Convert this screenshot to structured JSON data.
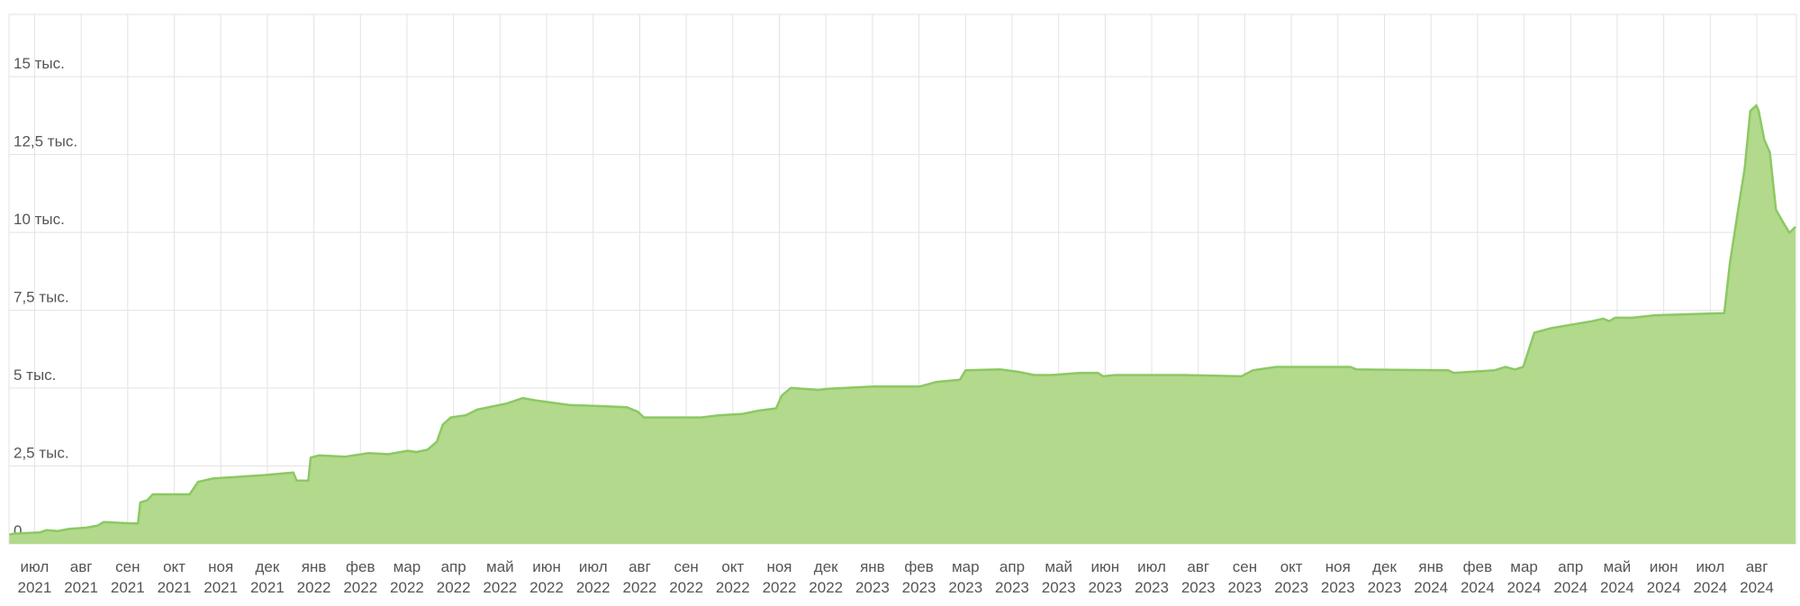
{
  "chart_data": {
    "type": "area",
    "x": [
      -0.54,
      -0.44,
      0.12,
      0.25,
      0.49,
      0.74,
      1.11,
      1.36,
      1.48,
      2.1,
      2.22,
      2.27,
      2.42,
      2.54,
      3.33,
      3.51,
      3.83,
      4.94,
      5.56,
      5.63,
      5.88,
      5.93,
      6.1,
      6.67,
      7.16,
      7.6,
      8.02,
      8.2,
      8.44,
      8.64,
      8.77,
      8.94,
      9.26,
      9.51,
      10.12,
      10.49,
      10.74,
      11.48,
      12.22,
      12.72,
      12.96,
      13.09,
      13.58,
      14.32,
      14.69,
      15.19,
      15.56,
      15.93,
      16.05,
      16.25,
      16.84,
      17.04,
      18.02,
      19.01,
      19.38,
      19.88,
      20.0,
      20.74,
      21.11,
      21.48,
      21.85,
      22.47,
      22.84,
      22.96,
      23.21,
      24.69,
      25.93,
      26.17,
      26.67,
      28.27,
      28.4,
      30.37,
      30.49,
      31.36,
      31.6,
      31.8,
      31.98,
      32.22,
      32.59,
      33.46,
      33.7,
      33.83,
      33.95,
      34.32,
      34.81,
      36.3,
      36.42,
      36.59,
      36.74,
      36.86,
      36.99,
      37.04,
      37.16,
      37.28,
      37.41,
      37.58,
      37.7,
      37.83
    ],
    "values": [
      300,
      330,
      370,
      440,
      410,
      480,
      520,
      590,
      700,
      660,
      660,
      1330,
      1400,
      1590,
      1590,
      1990,
      2100,
      2210,
      2290,
      2030,
      2030,
      2770,
      2840,
      2800,
      2910,
      2880,
      2990,
      2950,
      3020,
      3280,
      3830,
      4060,
      4130,
      4310,
      4500,
      4680,
      4610,
      4460,
      4420,
      4390,
      4240,
      4060,
      4060,
      4060,
      4130,
      4170,
      4280,
      4350,
      4760,
      5010,
      4940,
      4980,
      5050,
      5050,
      5200,
      5270,
      5570,
      5600,
      5530,
      5420,
      5420,
      5490,
      5490,
      5380,
      5420,
      5420,
      5380,
      5570,
      5680,
      5680,
      5600,
      5570,
      5490,
      5570,
      5680,
      5600,
      5680,
      6780,
      6930,
      7150,
      7230,
      7150,
      7260,
      7260,
      7340,
      7410,
      9000,
      10660,
      12060,
      13900,
      14080,
      13900,
      12980,
      12570,
      10730,
      10290,
      9990,
      10180
    ],
    "color": "#b3d98c",
    "line_color": "#8cc864",
    "grid": true,
    "xlim": [
      -0.55,
      37.85
    ],
    "xticks": [
      {
        "value": 0,
        "label": "июл 2021"
      },
      {
        "value": 1,
        "label": "авг 2021"
      },
      {
        "value": 2,
        "label": "сен 2021"
      },
      {
        "value": 3,
        "label": "окт 2021"
      },
      {
        "value": 4,
        "label": "ноя 2021"
      },
      {
        "value": 5,
        "label": "дек 2021"
      },
      {
        "value": 6,
        "label": "янв 2022"
      },
      {
        "value": 7,
        "label": "фев 2022"
      },
      {
        "value": 8,
        "label": "мар 2022"
      },
      {
        "value": 9,
        "label": "апр 2022"
      },
      {
        "value": 10,
        "label": "май 2022"
      },
      {
        "value": 11,
        "label": "июн 2022"
      },
      {
        "value": 12,
        "label": "июл 2022"
      },
      {
        "value": 13,
        "label": "авг 2022"
      },
      {
        "value": 14,
        "label": "сен 2022"
      },
      {
        "value": 15,
        "label": "окт 2022"
      },
      {
        "value": 16,
        "label": "ноя 2022"
      },
      {
        "value": 17,
        "label": "дек 2022"
      },
      {
        "value": 18,
        "label": "янв 2023"
      },
      {
        "value": 19,
        "label": "фев 2023"
      },
      {
        "value": 20,
        "label": "мар 2023"
      },
      {
        "value": 21,
        "label": "апр 2023"
      },
      {
        "value": 22,
        "label": "май 2023"
      },
      {
        "value": 23,
        "label": "июн 2023"
      },
      {
        "value": 24,
        "label": "июл 2023"
      },
      {
        "value": 25,
        "label": "авг 2023"
      },
      {
        "value": 26,
        "label": "сен 2023"
      },
      {
        "value": 27,
        "label": "окт 2023"
      },
      {
        "value": 28,
        "label": "ноя 2023"
      },
      {
        "value": 29,
        "label": "дек 2023"
      },
      {
        "value": 30,
        "label": "янв 2024"
      },
      {
        "value": 31,
        "label": "фев 2024"
      },
      {
        "value": 32,
        "label": "мар 2024"
      },
      {
        "value": 33,
        "label": "апр 2024"
      },
      {
        "value": 34,
        "label": "май 2024"
      },
      {
        "value": 35,
        "label": "июн 2024"
      },
      {
        "value": 36,
        "label": "июл 2024"
      },
      {
        "value": 37,
        "label": "авг 2024"
      }
    ],
    "ylim": [
      0,
      17000
    ],
    "yticks": [
      0,
      {
        "value": 2500,
        "label": "2,5 тыс."
      },
      {
        "value": 5000,
        "label": "5 тыс."
      },
      {
        "value": 7500,
        "label": "7,5 тыс."
      },
      {
        "value": 10000,
        "label": "10 тыс."
      },
      {
        "value": 12500,
        "label": "12,5 тыс."
      },
      {
        "value": 15000,
        "label": "15 тыс."
      }
    ]
  }
}
